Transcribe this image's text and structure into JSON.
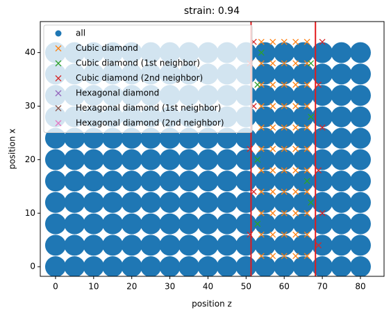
{
  "chart_data": {
    "type": "scatter",
    "title": "strain: 0.94",
    "xlabel": "position z",
    "ylabel": "position x",
    "xlim": [
      -4,
      86.2
    ],
    "ylim": [
      -1.8,
      45.8
    ],
    "xticks": [
      0,
      10,
      20,
      30,
      40,
      50,
      60,
      70,
      80
    ],
    "yticks": [
      0,
      10,
      20,
      30,
      40
    ],
    "vlines": [
      51.3,
      68.2
    ],
    "vline_color": "#e31a1c",
    "legend": "upper left",
    "series": [
      {
        "name": "all",
        "marker": "o",
        "color": "#1f77b4",
        "x": [
          0,
          5,
          10,
          15,
          20,
          25,
          30,
          35,
          40,
          45,
          50,
          55,
          60,
          65,
          70,
          75,
          80,
          0,
          5,
          10,
          15,
          20,
          25,
          30,
          35,
          40,
          45,
          50,
          55,
          60,
          65,
          70,
          75,
          80,
          0,
          5,
          10,
          15,
          20,
          25,
          30,
          35,
          40,
          45,
          50,
          55,
          60,
          65,
          70,
          75,
          80,
          0,
          5,
          10,
          15,
          20,
          25,
          30,
          35,
          40,
          45,
          50,
          55,
          60,
          65,
          70,
          75,
          80,
          0,
          5,
          10,
          15,
          20,
          25,
          30,
          35,
          40,
          45,
          50,
          55,
          60,
          65,
          70,
          75,
          80,
          0,
          5,
          10,
          15,
          20,
          25,
          30,
          35,
          40,
          45,
          50,
          55,
          60,
          65,
          70,
          75,
          80,
          0,
          5,
          10,
          15,
          20,
          25,
          30,
          35,
          40,
          45,
          50,
          55,
          60,
          65,
          70,
          75,
          80,
          0,
          5,
          10,
          15,
          20,
          25,
          30,
          35,
          40,
          45,
          50,
          55,
          60,
          65,
          70,
          75,
          80,
          0,
          5,
          10,
          15,
          20,
          25,
          30,
          35,
          40,
          45,
          50,
          55,
          60,
          65,
          70,
          75,
          80,
          0,
          5,
          10,
          15,
          20,
          25,
          30,
          35,
          40,
          45,
          50,
          55,
          60,
          65,
          70,
          75,
          80,
          0,
          5,
          10,
          15,
          20,
          25,
          30,
          35,
          40,
          45,
          50,
          55,
          60,
          65,
          70,
          75,
          80
        ],
        "y": [
          0,
          0,
          0,
          0,
          0,
          0,
          0,
          0,
          0,
          0,
          0,
          0,
          0,
          0,
          0,
          0,
          0,
          4,
          4,
          4,
          4,
          4,
          4,
          4,
          4,
          4,
          4,
          4,
          4,
          4,
          4,
          4,
          4,
          4,
          8,
          8,
          8,
          8,
          8,
          8,
          8,
          8,
          8,
          8,
          8,
          8,
          8,
          8,
          8,
          8,
          8,
          12,
          12,
          12,
          12,
          12,
          12,
          12,
          12,
          12,
          12,
          12,
          12,
          12,
          12,
          12,
          12,
          12,
          16,
          16,
          16,
          16,
          16,
          16,
          16,
          16,
          16,
          16,
          16,
          16,
          16,
          16,
          16,
          16,
          16,
          20,
          20,
          20,
          20,
          20,
          20,
          20,
          20,
          20,
          20,
          20,
          20,
          20,
          20,
          20,
          20,
          20,
          24,
          24,
          24,
          24,
          24,
          24,
          24,
          24,
          24,
          24,
          24,
          24,
          24,
          24,
          24,
          24,
          24,
          28,
          28,
          28,
          28,
          28,
          28,
          28,
          28,
          28,
          28,
          28,
          28,
          28,
          28,
          28,
          28,
          28,
          32,
          32,
          32,
          32,
          32,
          32,
          32,
          32,
          32,
          32,
          32,
          32,
          32,
          32,
          32,
          32,
          32,
          36,
          36,
          36,
          36,
          36,
          36,
          36,
          36,
          36,
          36,
          36,
          36,
          36,
          36,
          36,
          36,
          36,
          40,
          40,
          40,
          40,
          40,
          40,
          40,
          40,
          40,
          40,
          40,
          40,
          40,
          40,
          40,
          40,
          40
        ]
      },
      {
        "name": "Cubic diamond",
        "marker": "x",
        "color": "#ff7f0e",
        "x": [
          54,
          57,
          60,
          63,
          66,
          54,
          57,
          60,
          63,
          66,
          54,
          57,
          60,
          63,
          66,
          54,
          57,
          60,
          63,
          66,
          54,
          57,
          60,
          63,
          66,
          54,
          57,
          60,
          63,
          66,
          54,
          57,
          60,
          63,
          66,
          54,
          57,
          60,
          63,
          66,
          54,
          57,
          60,
          63,
          66,
          54,
          57,
          60,
          63,
          66,
          54,
          57,
          60,
          63,
          66
        ],
        "y": [
          2,
          2,
          2,
          2,
          2,
          6,
          6,
          6,
          6,
          6,
          10,
          10,
          10,
          10,
          10,
          14,
          14,
          14,
          14,
          14,
          18,
          18,
          18,
          18,
          18,
          22,
          22,
          22,
          22,
          22,
          26,
          26,
          26,
          26,
          26,
          30,
          30,
          30,
          30,
          30,
          34,
          34,
          34,
          34,
          34,
          38,
          38,
          38,
          38,
          38,
          42,
          42,
          42,
          42,
          42
        ]
      },
      {
        "name": "Cubic diamond (1st neighbor)",
        "marker": "x",
        "color": "#2ca02c",
        "x": [
          53,
          67,
          53,
          67,
          53,
          67,
          54,
          66
        ],
        "y": [
          8,
          12,
          20,
          28,
          34,
          38,
          40,
          16
        ]
      },
      {
        "name": "Cubic diamond (2nd neighbor)",
        "marker": "x",
        "color": "#d62728",
        "x": [
          51,
          52,
          51,
          52,
          51,
          52,
          69,
          70,
          69,
          70,
          69,
          70
        ],
        "y": [
          6,
          14,
          22,
          30,
          38,
          42,
          4,
          10,
          18,
          26,
          34,
          42
        ]
      },
      {
        "name": "Hexagonal diamond",
        "marker": "x",
        "color": "#9467bd",
        "x": [],
        "y": []
      },
      {
        "name": "Hexagonal diamond (1st neighbor)",
        "marker": "x",
        "color": "#8c564b",
        "x": [],
        "y": []
      },
      {
        "name": "Hexagonal diamond (2nd neighbor)",
        "marker": "x",
        "color": "#e377c2",
        "x": [],
        "y": []
      }
    ]
  }
}
